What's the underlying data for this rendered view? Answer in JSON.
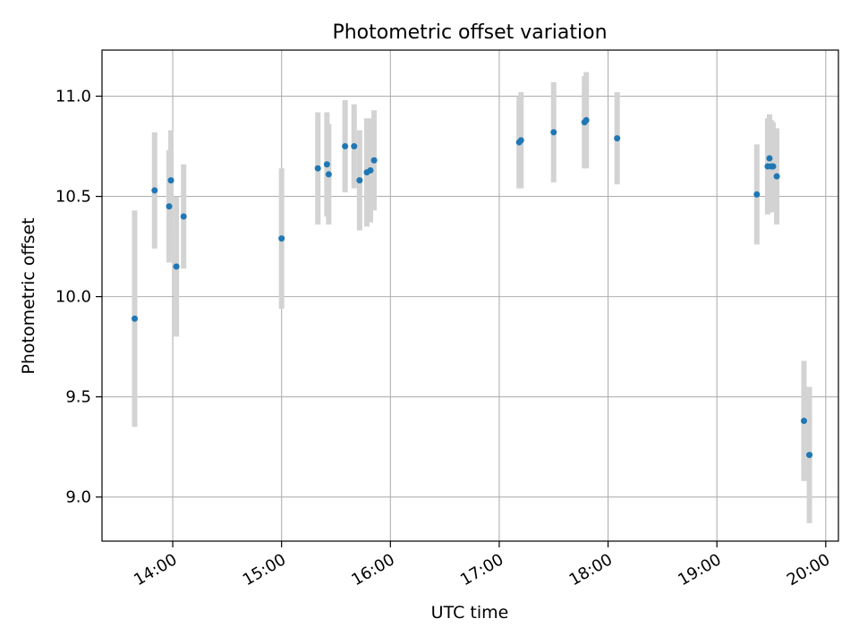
{
  "chart_data": {
    "type": "scatter",
    "title": "Photometric offset variation",
    "xlabel": "UTC time",
    "ylabel": "Photometric offset",
    "grid": true,
    "xlim": [
      "13:21",
      "20:07"
    ],
    "ylim": [
      8.78,
      11.23
    ],
    "xticks": [
      "14:00",
      "15:00",
      "16:00",
      "17:00",
      "18:00",
      "19:00",
      "20:00"
    ],
    "yticks": [
      9.0,
      9.5,
      10.0,
      10.5,
      11.0
    ],
    "ytick_labels": [
      "9.0",
      "9.5",
      "10.0",
      "10.5",
      "11.0"
    ],
    "colors": {
      "point": "#1f77b4",
      "errorbar": "#d3d3d3",
      "grid": "#b0b0b0"
    },
    "points": [
      {
        "x": "13:39",
        "y": 9.89,
        "yerr": 0.54
      },
      {
        "x": "13:50",
        "y": 10.53,
        "yerr": 0.29
      },
      {
        "x": "13:58",
        "y": 10.45,
        "yerr": 0.28
      },
      {
        "x": "13:59",
        "y": 10.58,
        "yerr": 0.25
      },
      {
        "x": "14:02",
        "y": 10.15,
        "yerr": 0.35
      },
      {
        "x": "14:06",
        "y": 10.4,
        "yerr": 0.26
      },
      {
        "x": "15:00",
        "y": 10.29,
        "yerr": 0.35
      },
      {
        "x": "15:20",
        "y": 10.64,
        "yerr": 0.28
      },
      {
        "x": "15:25",
        "y": 10.66,
        "yerr": 0.26
      },
      {
        "x": "15:26",
        "y": 10.61,
        "yerr": 0.25
      },
      {
        "x": "15:35",
        "y": 10.75,
        "yerr": 0.23
      },
      {
        "x": "15:40",
        "y": 10.75,
        "yerr": 0.21
      },
      {
        "x": "15:43",
        "y": 10.58,
        "yerr": 0.25
      },
      {
        "x": "15:47",
        "y": 10.62,
        "yerr": 0.27
      },
      {
        "x": "15:49",
        "y": 10.63,
        "yerr": 0.26
      },
      {
        "x": "15:51",
        "y": 10.68,
        "yerr": 0.25
      },
      {
        "x": "17:11",
        "y": 10.77,
        "yerr": 0.23
      },
      {
        "x": "17:12",
        "y": 10.78,
        "yerr": 0.24
      },
      {
        "x": "17:30",
        "y": 10.82,
        "yerr": 0.25
      },
      {
        "x": "17:47",
        "y": 10.87,
        "yerr": 0.23
      },
      {
        "x": "17:48",
        "y": 10.88,
        "yerr": 0.24
      },
      {
        "x": "18:05",
        "y": 10.79,
        "yerr": 0.23
      },
      {
        "x": "19:22",
        "y": 10.51,
        "yerr": 0.25
      },
      {
        "x": "19:28",
        "y": 10.65,
        "yerr": 0.24
      },
      {
        "x": "19:29",
        "y": 10.69,
        "yerr": 0.22
      },
      {
        "x": "19:30",
        "y": 10.65,
        "yerr": 0.23
      },
      {
        "x": "19:31",
        "y": 10.65,
        "yerr": 0.22
      },
      {
        "x": "19:33",
        "y": 10.6,
        "yerr": 0.24
      },
      {
        "x": "19:48",
        "y": 9.38,
        "yerr": 0.3
      },
      {
        "x": "19:51",
        "y": 9.21,
        "yerr": 0.34
      }
    ]
  }
}
